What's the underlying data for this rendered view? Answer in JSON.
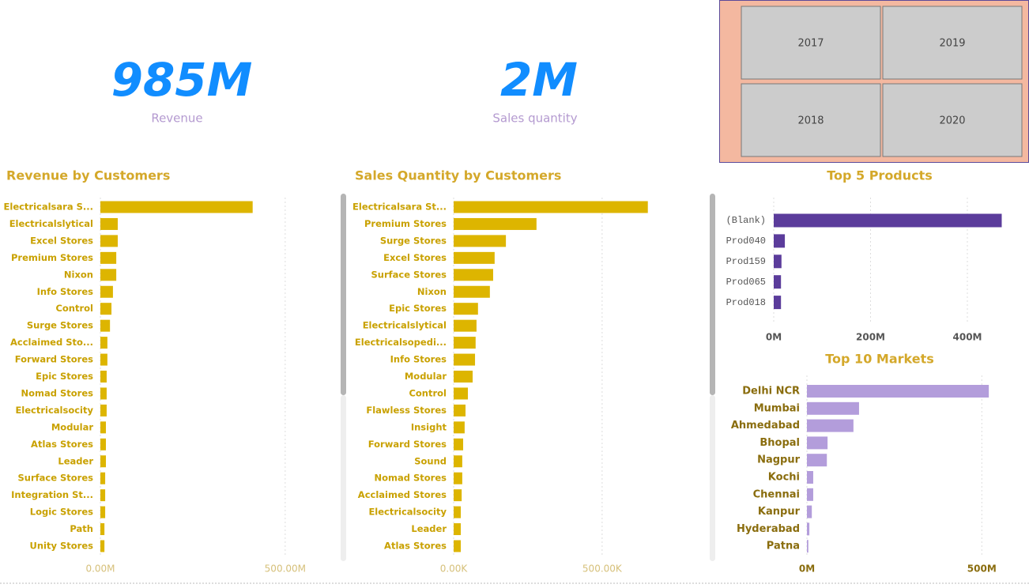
{
  "kpis": [
    {
      "value": "985M",
      "label": "Revenue"
    },
    {
      "value": "2M",
      "label": "Sales quantity"
    }
  ],
  "slicer": {
    "items": [
      "2017",
      "2019",
      "2018",
      "2020"
    ]
  },
  "chart_data": [
    {
      "type": "hbar",
      "title": "Revenue by Customers",
      "color": "#ddb500",
      "categories": [
        "Electricalsara S...",
        "Electricalslytical",
        "Excel Stores",
        "Premium Stores",
        "Nixon",
        "Info Stores",
        "Control",
        "Surge Stores",
        "Acclaimed Sto...",
        "Forward Stores",
        "Epic Stores",
        "Nomad Stores",
        "Electricalsocity",
        "Modular",
        "Atlas Stores",
        "Leader",
        "Surface Stores",
        "Integration St...",
        "Logic Stores",
        "Path",
        "Unity Stores"
      ],
      "values": [
        412,
        47,
        47,
        43,
        43,
        34,
        30,
        26,
        19,
        19,
        17,
        17,
        17,
        15,
        15,
        15,
        13,
        13,
        13,
        11,
        11
      ],
      "xlim": [
        0,
        650
      ],
      "xticks": [
        {
          "value": 0,
          "label": "0.00M"
        },
        {
          "value": 500,
          "label": "500.00M"
        }
      ],
      "grid": true
    },
    {
      "type": "hbar",
      "title": "Sales Quantity by Customers",
      "color": "#ddb500",
      "categories": [
        "Electricalsara St...",
        "Premium Stores",
        "Surge Stores",
        "Excel Stores",
        "Surface Stores",
        "Nixon",
        "Epic Stores",
        "Electricalslytical",
        "Electricalsopedi...",
        "Info Stores",
        "Modular",
        "Control",
        "Flawless Stores",
        "Insight",
        "Forward Stores",
        "Sound",
        "Nomad Stores",
        "Acclaimed Stores",
        "Electricalsocity",
        "Leader",
        "Atlas Stores"
      ],
      "values": [
        654,
        279,
        176,
        138,
        133,
        122,
        82,
        77,
        74,
        72,
        64,
        48,
        40,
        37,
        32,
        29,
        29,
        27,
        24,
        24,
        24
      ],
      "xlim": [
        0,
        700
      ],
      "xticks": [
        {
          "value": 0,
          "label": "0.00K"
        },
        {
          "value": 500,
          "label": "500.00K"
        }
      ],
      "grid": true
    },
    {
      "type": "hbar",
      "title": "Top 5 Products",
      "color": "#5b3c9b",
      "categories": [
        "(Blank)",
        "Prod040",
        "Prod159",
        "Prod065",
        "Prod018"
      ],
      "values": [
        471,
        23,
        16,
        15,
        15
      ],
      "xlim": [
        0,
        480
      ],
      "xticks": [
        {
          "value": 0,
          "label": "0M"
        },
        {
          "value": 200,
          "label": "200M"
        },
        {
          "value": 400,
          "label": "400M"
        }
      ],
      "grid": true
    },
    {
      "type": "hbar",
      "title": "Top 10 Markets",
      "color": "#b39ddb",
      "categories": [
        "Delhi NCR",
        "Mumbai",
        "Ahmedabad",
        "Bhopal",
        "Nagpur",
        "Kochi",
        "Chennai",
        "Kanpur",
        "Hyderabad",
        "Patna"
      ],
      "values": [
        520,
        149,
        133,
        59,
        57,
        18,
        18,
        14,
        7,
        4
      ],
      "xlim": [
        0,
        540
      ],
      "xticks": [
        {
          "value": 0,
          "label": "0M"
        },
        {
          "value": 500,
          "label": "500M"
        }
      ],
      "grid": true
    }
  ]
}
